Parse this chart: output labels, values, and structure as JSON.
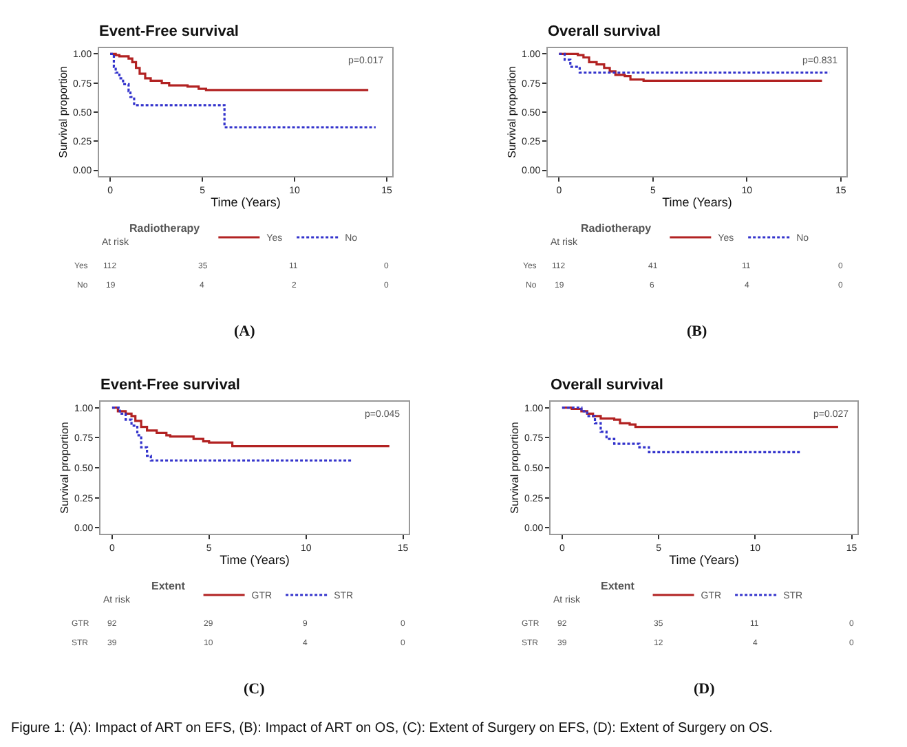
{
  "chart_data": [
    {
      "type": "step",
      "title": "Event-Free survival",
      "xlabel": "Time (Years)",
      "ylabel": "Survival proportion",
      "legend_title": "Radiotherapy",
      "legend": "bottom",
      "grid": false,
      "xlim": [
        -0.6,
        15.3
      ],
      "ylim": [
        -0.05,
        1.05
      ],
      "xticks": [
        0,
        5,
        10,
        15
      ],
      "yticks": [
        {
          "value": 0,
          "label": "0.00"
        },
        {
          "value": 0.25,
          "label": "0.25"
        },
        {
          "value": 0.5,
          "label": "0.50"
        },
        {
          "value": 0.75,
          "label": "0.75"
        },
        {
          "value": 1,
          "label": "1.00"
        }
      ],
      "series": [
        {
          "name": "Yes",
          "color": "#b22222",
          "line_style": "solid",
          "x": [
            0,
            0.3,
            0.5,
            1.0,
            1.2,
            1.4,
            1.6,
            1.9,
            2.2,
            2.8,
            3.2,
            4.2,
            4.8,
            5.2,
            14.0
          ],
          "values": [
            1.0,
            0.99,
            0.98,
            0.96,
            0.93,
            0.88,
            0.83,
            0.79,
            0.77,
            0.75,
            0.73,
            0.72,
            0.7,
            0.69,
            0.69
          ]
        },
        {
          "name": "No",
          "color": "#3333cc",
          "line_style": "dotted",
          "x": [
            0,
            0.2,
            0.3,
            0.5,
            0.7,
            1.0,
            1.1,
            1.3,
            6.2,
            14.4
          ],
          "values": [
            1.0,
            0.89,
            0.84,
            0.79,
            0.74,
            0.68,
            0.63,
            0.56,
            0.37,
            0.37
          ]
        }
      ],
      "annotations": [
        "p=0.017",
        "At risk",
        "Yes",
        "112",
        "35",
        "11",
        "0",
        "No",
        "19",
        "4",
        "2",
        "0",
        "(A)"
      ]
    },
    {
      "type": "step",
      "title": "Overall survival",
      "xlabel": "Time (Years)",
      "ylabel": "Survival proportion",
      "legend_title": "Radiotherapy",
      "legend": "bottom",
      "grid": false,
      "xlim": [
        -0.6,
        15.3
      ],
      "ylim": [
        -0.05,
        1.05
      ],
      "xticks": [
        0,
        5,
        10,
        15
      ],
      "yticks": [
        {
          "value": 0,
          "label": "0.00"
        },
        {
          "value": 0.25,
          "label": "0.25"
        },
        {
          "value": 0.5,
          "label": "0.50"
        },
        {
          "value": 0.75,
          "label": "0.75"
        },
        {
          "value": 1,
          "label": "1.00"
        }
      ],
      "series": [
        {
          "name": "Yes",
          "color": "#b22222",
          "line_style": "solid",
          "x": [
            0,
            1.0,
            1.3,
            1.6,
            2.0,
            2.4,
            2.7,
            3.0,
            3.5,
            3.8,
            4.5,
            14.0
          ],
          "values": [
            1.0,
            0.99,
            0.97,
            0.93,
            0.91,
            0.88,
            0.85,
            0.82,
            0.81,
            0.78,
            0.77,
            0.77
          ]
        },
        {
          "name": "No",
          "color": "#3333cc",
          "line_style": "dotted",
          "x": [
            0,
            0.3,
            0.6,
            1.1,
            14.4
          ],
          "values": [
            1.0,
            0.95,
            0.89,
            0.84,
            0.84
          ]
        }
      ],
      "annotations": [
        "p=0.831",
        "At risk",
        "Yes",
        "112",
        "41",
        "11",
        "0",
        "No",
        "19",
        "6",
        "4",
        "0",
        "(B)"
      ]
    },
    {
      "type": "step",
      "title": "Event-Free survival",
      "xlabel": "Time (Years)",
      "ylabel": "Survival proportion",
      "legend_title": "Extent",
      "legend": "bottom",
      "grid": false,
      "xlim": [
        -0.6,
        15.3
      ],
      "ylim": [
        -0.05,
        1.05
      ],
      "xticks": [
        0,
        5,
        10,
        15
      ],
      "yticks": [
        {
          "value": 0,
          "label": "0.00"
        },
        {
          "value": 0.25,
          "label": "0.25"
        },
        {
          "value": 0.5,
          "label": "0.50"
        },
        {
          "value": 0.75,
          "label": "0.75"
        },
        {
          "value": 1,
          "label": "1.00"
        }
      ],
      "series": [
        {
          "name": "GTR",
          "color": "#b22222",
          "line_style": "solid",
          "x": [
            0,
            0.3,
            0.7,
            1.0,
            1.2,
            1.5,
            1.8,
            2.3,
            2.8,
            3.0,
            4.2,
            4.7,
            5.0,
            6.2,
            14.3
          ],
          "values": [
            1.0,
            0.97,
            0.95,
            0.93,
            0.89,
            0.84,
            0.81,
            0.79,
            0.77,
            0.76,
            0.74,
            0.72,
            0.71,
            0.68,
            0.68
          ]
        },
        {
          "name": "STR",
          "color": "#3333cc",
          "line_style": "dotted",
          "x": [
            0,
            0.4,
            0.7,
            1.0,
            1.3,
            1.5,
            1.8,
            2.0,
            12.4
          ],
          "values": [
            1.0,
            0.95,
            0.9,
            0.85,
            0.77,
            0.67,
            0.6,
            0.56,
            0.56
          ]
        }
      ],
      "annotations": [
        "p=0.045",
        "At risk",
        "GTR",
        "92",
        "29",
        "9",
        "0",
        "STR",
        "39",
        "10",
        "4",
        "0",
        "(C)"
      ]
    },
    {
      "type": "step",
      "title": "Overall survival",
      "xlabel": "Time (Years)",
      "ylabel": "Survival proportion",
      "legend_title": "Extent",
      "legend": "bottom",
      "grid": false,
      "xlim": [
        -0.6,
        15.3
      ],
      "ylim": [
        -0.05,
        1.05
      ],
      "xticks": [
        0,
        5,
        10,
        15
      ],
      "yticks": [
        {
          "value": 0,
          "label": "0.00"
        },
        {
          "value": 0.25,
          "label": "0.25"
        },
        {
          "value": 0.5,
          "label": "0.50"
        },
        {
          "value": 0.75,
          "label": "0.75"
        },
        {
          "value": 1,
          "label": "1.00"
        }
      ],
      "series": [
        {
          "name": "GTR",
          "color": "#b22222",
          "line_style": "solid",
          "x": [
            0,
            0.5,
            1.0,
            1.3,
            1.6,
            2.0,
            2.7,
            3.0,
            3.5,
            3.8,
            14.3
          ],
          "values": [
            1.0,
            0.99,
            0.97,
            0.95,
            0.93,
            0.91,
            0.9,
            0.87,
            0.86,
            0.84,
            0.84
          ]
        },
        {
          "name": "STR",
          "color": "#3333cc",
          "line_style": "dotted",
          "x": [
            0,
            1.0,
            1.3,
            1.7,
            2.0,
            2.3,
            2.7,
            4.0,
            4.5,
            12.4
          ],
          "values": [
            1.0,
            0.97,
            0.93,
            0.87,
            0.8,
            0.74,
            0.7,
            0.67,
            0.63,
            0.63
          ]
        }
      ],
      "annotations": [
        "p=0.027",
        "At risk",
        "GTR",
        "92",
        "35",
        "11",
        "0",
        "STR",
        "39",
        "12",
        "4",
        "0",
        "(D)",
        "Figure 1: (A): Impact of ART on EFS, (B): Impact of ART on OS, (C): Extent of Surgery on EFS, (D): Extent of Surgery on OS."
      ]
    }
  ]
}
